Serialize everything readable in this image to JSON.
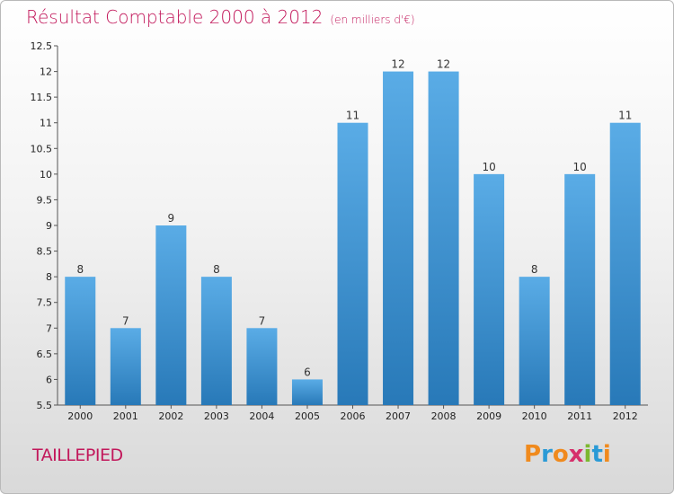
{
  "title": "Résultat Comptable 2000 à 2012",
  "unit": "(en milliers d'€)",
  "commune": "TAILLEPIED",
  "logo_text": "Proxiti",
  "colors": {
    "title": "#c2185b",
    "bar_top": "#5aace6",
    "bar_bottom": "#2879b8",
    "logo": [
      "#f08a1d",
      "#2a9ad6",
      "#f08a1d",
      "#d6306b",
      "#7cb82f",
      "#2a9ad6",
      "#f08a1d"
    ]
  },
  "chart_data": {
    "type": "bar",
    "title": "Résultat Comptable 2000 à 2012",
    "xlabel": "",
    "ylabel": "",
    "categories": [
      "2000",
      "2001",
      "2002",
      "2003",
      "2004",
      "2005",
      "2006",
      "2007",
      "2008",
      "2009",
      "2010",
      "2011",
      "2012"
    ],
    "values": [
      8,
      7,
      9,
      8,
      7,
      6,
      11,
      12,
      12,
      10,
      8,
      10,
      11
    ],
    "labels": [
      "8",
      "7",
      "9",
      "8",
      "7",
      "6",
      "11",
      "12",
      "12",
      "10",
      "8",
      "10",
      "11"
    ],
    "ylim": [
      5.5,
      12.5
    ],
    "yticks": [
      5.5,
      6,
      6.5,
      7,
      7.5,
      8,
      8.5,
      9,
      9.5,
      10,
      10.5,
      11,
      11.5,
      12,
      12.5
    ],
    "ytick_labels": [
      "5.5",
      "6",
      "6.5",
      "7",
      "7.5",
      "8",
      "8.5",
      "9",
      "9.5",
      "10",
      "10.5",
      "11",
      "11.5",
      "12",
      "12.5"
    ],
    "grid": false,
    "legend": "none"
  }
}
